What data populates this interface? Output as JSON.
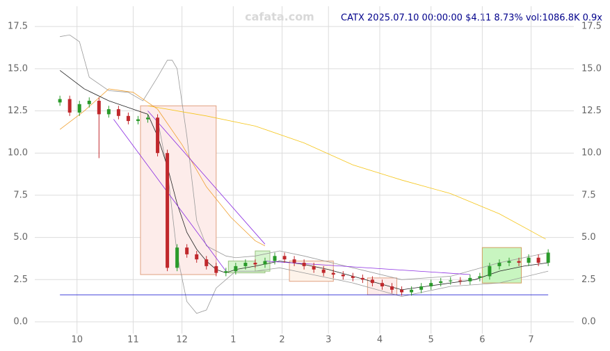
{
  "chart_data": {
    "type": "candlestick",
    "title": "CATX 2025.07.10 00:00:00 $4.11 8.73% vol:1086.8K 0.9x",
    "watermark": "cafata.com",
    "x": [
      0,
      4,
      8,
      12,
      16,
      20,
      24,
      28,
      32,
      36,
      40,
      44,
      48,
      52,
      56,
      60,
      64,
      68,
      72,
      76,
      80,
      84,
      88,
      92,
      96,
      100,
      104,
      108,
      112,
      116,
      120,
      124,
      128,
      132,
      136,
      140,
      144,
      148,
      152,
      156,
      160,
      164,
      168,
      172,
      176,
      180,
      184,
      188,
      192,
      196,
      200
    ],
    "open": [
      13.0,
      13.2,
      12.4,
      12.9,
      13.1,
      12.3,
      12.6,
      12.2,
      11.9,
      12.0,
      12.1,
      10.0,
      3.2,
      4.4,
      4.0,
      3.7,
      3.3,
      2.9,
      3.0,
      3.3,
      3.5,
      3.4,
      3.6,
      3.9,
      3.7,
      3.5,
      3.3,
      3.1,
      2.9,
      2.8,
      2.7,
      2.6,
      2.5,
      2.3,
      2.1,
      1.9,
      1.75,
      1.9,
      2.1,
      2.3,
      2.4,
      2.45,
      2.4,
      2.6,
      2.7,
      3.3,
      3.5,
      3.6,
      3.5,
      3.8,
      3.5
    ],
    "high": [
      13.4,
      13.4,
      13.1,
      13.3,
      13.3,
      12.8,
      12.8,
      12.4,
      12.2,
      12.3,
      12.3,
      10.2,
      4.6,
      4.6,
      4.2,
      3.9,
      3.5,
      3.2,
      3.5,
      3.7,
      3.7,
      3.8,
      4.1,
      4.1,
      3.9,
      3.7,
      3.5,
      3.3,
      3.1,
      3.0,
      2.9,
      2.8,
      2.7,
      2.5,
      2.3,
      2.1,
      2.1,
      2.3,
      2.5,
      2.6,
      2.65,
      2.65,
      2.8,
      2.9,
      3.5,
      3.7,
      3.8,
      3.8,
      4.0,
      4.0,
      4.3
    ],
    "low": [
      12.8,
      12.2,
      12.2,
      12.7,
      9.7,
      12.1,
      12.0,
      11.7,
      11.7,
      11.8,
      9.8,
      3.0,
      3.0,
      3.8,
      3.5,
      3.1,
      2.7,
      2.7,
      2.8,
      3.1,
      3.2,
      3.2,
      3.4,
      3.5,
      3.3,
      3.1,
      2.9,
      2.7,
      2.6,
      2.5,
      2.4,
      2.3,
      2.1,
      1.9,
      1.7,
      1.55,
      1.55,
      1.7,
      1.9,
      2.1,
      2.2,
      2.2,
      2.2,
      2.4,
      2.5,
      3.1,
      3.3,
      3.3,
      3.3,
      3.3,
      3.3
    ],
    "close": [
      13.2,
      12.4,
      12.9,
      13.1,
      12.3,
      12.6,
      12.2,
      11.9,
      12.0,
      12.1,
      10.0,
      3.2,
      4.4,
      4.0,
      3.7,
      3.3,
      2.9,
      3.0,
      3.3,
      3.5,
      3.4,
      3.6,
      3.9,
      3.7,
      3.5,
      3.3,
      3.1,
      2.9,
      2.8,
      2.7,
      2.6,
      2.5,
      2.3,
      2.1,
      1.9,
      1.75,
      1.9,
      2.1,
      2.3,
      2.4,
      2.45,
      2.4,
      2.6,
      2.7,
      3.3,
      3.5,
      3.6,
      3.5,
      3.8,
      3.5,
      4.1
    ],
    "up_color": "#2a9a2a",
    "down_color": "#c0282c",
    "xlim": [
      -10.3,
      210.5
    ],
    "xticks": [
      {
        "value": 7,
        "label": "10"
      },
      {
        "value": 30,
        "label": "11"
      },
      {
        "value": 50,
        "label": "12"
      },
      {
        "value": 71,
        "label": "1"
      },
      {
        "value": 91,
        "label": "2"
      },
      {
        "value": 110,
        "label": "3"
      },
      {
        "value": 131,
        "label": "4"
      },
      {
        "value": 152,
        "label": "5"
      },
      {
        "value": 173,
        "label": "6"
      },
      {
        "value": 193,
        "label": "7"
      }
    ],
    "ylim": [
      -0.7,
      18.7
    ],
    "yticks": [
      {
        "value": 0,
        "label": "0.0"
      },
      2.5,
      {
        "value": 5,
        "label": "5.0"
      },
      7.5,
      {
        "value": 10,
        "label": "10.0"
      },
      12.5,
      {
        "value": 15,
        "label": "15.0"
      },
      17.5
    ],
    "grid": true,
    "boxes": [
      {
        "x": [
          33,
          64
        ],
        "y": [
          2.8,
          12.8
        ],
        "fill": "#fdecea",
        "stroke": "#e0a080"
      },
      {
        "x": [
          69,
          84
        ],
        "y": [
          2.9,
          3.6
        ],
        "fill": "#d8f5d0",
        "stroke": "#9ac080"
      },
      {
        "x": [
          80,
          86
        ],
        "y": [
          3.0,
          4.2
        ],
        "fill": "#d8f5d0",
        "stroke": "#9ac080"
      },
      {
        "x": [
          94,
          112
        ],
        "y": [
          2.4,
          3.6
        ],
        "fill": "#fdf3ea",
        "stroke": "#e0a080"
      },
      {
        "x": [
          126,
          138
        ],
        "y": [
          1.6,
          2.6
        ],
        "fill": "#fdecea",
        "stroke": "#e0a080"
      },
      {
        "x": [
          173,
          189
        ],
        "y": [
          2.3,
          4.4
        ],
        "fill": "#c8f5c0",
        "stroke": "#d0a060"
      }
    ],
    "overlays": [
      {
        "color": "#999999",
        "x": [
          0,
          4,
          8,
          12,
          20,
          28,
          34,
          40,
          44,
          46,
          48,
          52,
          56,
          60,
          64,
          68,
          72,
          80,
          90,
          100,
          120,
          140,
          160,
          180,
          200
        ],
        "y": [
          16.9,
          17.0,
          16.6,
          14.5,
          13.7,
          13.6,
          13.1,
          14.5,
          15.5,
          15.5,
          15.0,
          11.0,
          6.0,
          4.5,
          4.2,
          3.9,
          3.8,
          3.9,
          4.2,
          3.9,
          3.2,
          2.5,
          2.7,
          3.5,
          4.1
        ]
      },
      {
        "color": "#999999",
        "x": [
          40,
          44,
          48,
          52,
          56,
          60,
          64,
          72,
          80,
          90,
          100,
          120,
          140,
          160,
          180,
          200
        ],
        "y": [
          12.0,
          9.0,
          4.0,
          1.2,
          0.5,
          0.7,
          2.0,
          3.0,
          3.0,
          3.2,
          2.9,
          2.3,
          1.5,
          2.1,
          2.3,
          3.0
        ]
      },
      {
        "color": "#f5c518",
        "x": [
          36,
          60,
          80,
          100,
          120,
          140,
          160,
          180,
          199
        ],
        "y": [
          12.8,
          12.2,
          11.6,
          10.6,
          9.3,
          8.4,
          7.6,
          6.4,
          4.9
        ]
      },
      {
        "color": "#f0a030",
        "x": [
          0,
          10,
          20,
          30,
          40,
          50,
          60,
          70,
          80,
          84
        ],
        "y": [
          11.4,
          12.5,
          13.8,
          13.6,
          12.6,
          10.5,
          8.0,
          6.2,
          4.8,
          4.5
        ]
      },
      {
        "color": "#222222",
        "x": [
          0,
          10,
          20,
          30,
          36,
          40,
          44,
          48,
          52,
          56,
          60,
          64,
          68,
          72,
          80,
          90,
          100,
          110,
          120,
          130,
          140,
          150,
          160,
          170,
          180,
          190,
          200
        ],
        "y": [
          14.9,
          13.8,
          13.1,
          12.6,
          12.3,
          11.0,
          9.2,
          7.0,
          5.3,
          4.3,
          3.6,
          3.1,
          2.9,
          3.1,
          3.3,
          3.6,
          3.4,
          3.1,
          2.7,
          2.3,
          1.9,
          2.1,
          2.3,
          2.5,
          3.0,
          3.3,
          3.5
        ]
      },
      {
        "color": "#8a2be2",
        "x": [
          22,
          68
        ],
        "y": [
          12.0,
          3.0
        ]
      },
      {
        "color": "#8a2be2",
        "x": [
          36,
          84
        ],
        "y": [
          12.5,
          4.6
        ]
      },
      {
        "color": "#8a2be2",
        "x": [
          84,
          168
        ],
        "y": [
          3.6,
          2.8
        ]
      },
      {
        "color": "#0000cc",
        "x": [
          0,
          200
        ],
        "y": [
          1.6,
          1.6
        ]
      }
    ]
  }
}
